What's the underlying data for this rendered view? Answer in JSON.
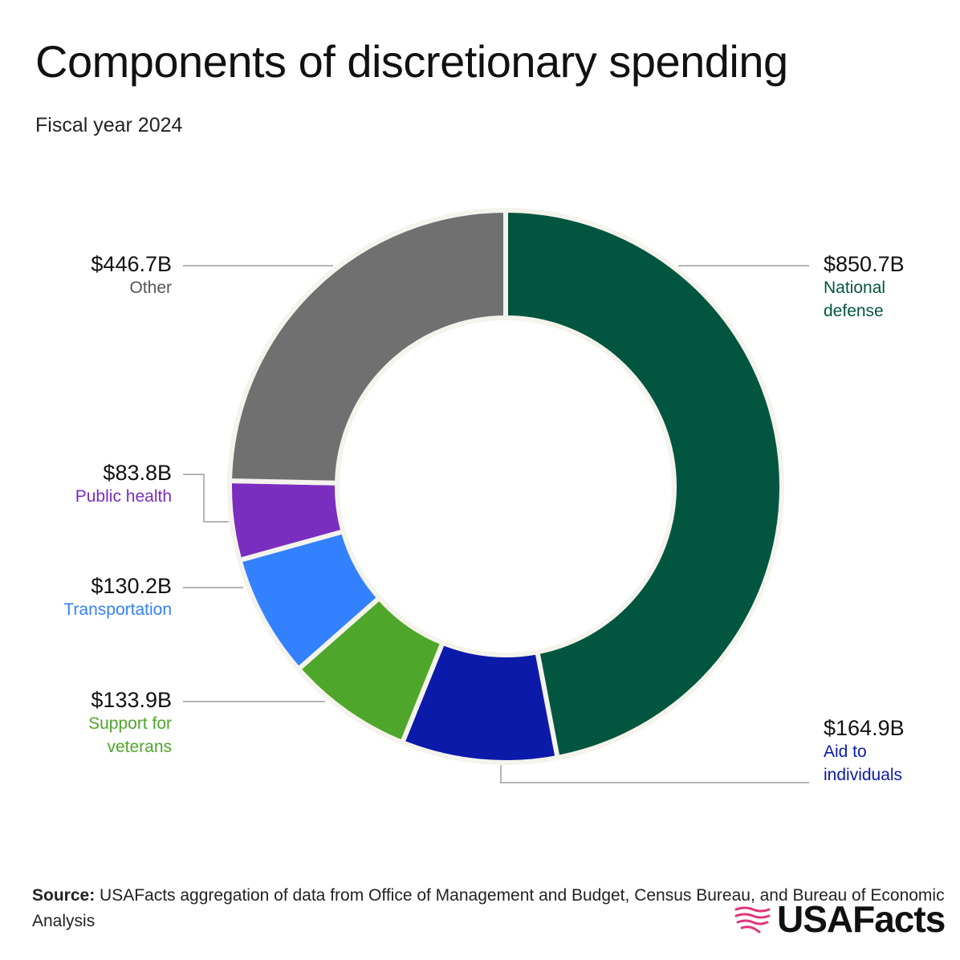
{
  "title": "Components of discretionary spending",
  "subtitle": "Fiscal year 2024",
  "chart_data": {
    "type": "pie",
    "variant": "donut",
    "title": "Components of discretionary spending",
    "subtitle": "Fiscal year 2024",
    "unit": "$ billions",
    "slices": [
      {
        "name": "National defense",
        "name_lines": [
          "National",
          "defense"
        ],
        "value": 850.7,
        "label": "$850.7B",
        "color": "#025640",
        "label_color": "#025640"
      },
      {
        "name": "Aid to individuals",
        "name_lines": [
          "Aid to",
          "individuals"
        ],
        "value": 164.9,
        "label": "$164.9B",
        "color": "#0b1aa8",
        "label_color": "#0b1aa8"
      },
      {
        "name": "Support for veterans",
        "name_lines": [
          "Support for",
          "veterans"
        ],
        "value": 133.9,
        "label": "$133.9B",
        "color": "#4ea72a",
        "label_color": "#4ea72a"
      },
      {
        "name": "Transportation",
        "name_lines": [
          "Transportation"
        ],
        "value": 130.2,
        "label": "$130.2B",
        "color": "#3381ff",
        "label_color": "#3381ff"
      },
      {
        "name": "Public health",
        "name_lines": [
          "Public health"
        ],
        "value": 83.8,
        "label": "$83.8B",
        "color": "#7b2dc0",
        "label_color": "#7b2dc0"
      },
      {
        "name": "Other",
        "name_lines": [
          "Other"
        ],
        "value": 446.7,
        "label": "$446.7B",
        "color": "#707070",
        "label_color": "#555555"
      }
    ]
  },
  "footer": {
    "source_label": "Source:",
    "source_text": " USAFacts aggregation of data from Office of Management and Budget, Census Bureau, and Bureau of Economic Analysis",
    "logo_text": "USAFacts",
    "logo_icon": "usafacts-flag-map-icon",
    "logo_color": "#e0367d"
  }
}
